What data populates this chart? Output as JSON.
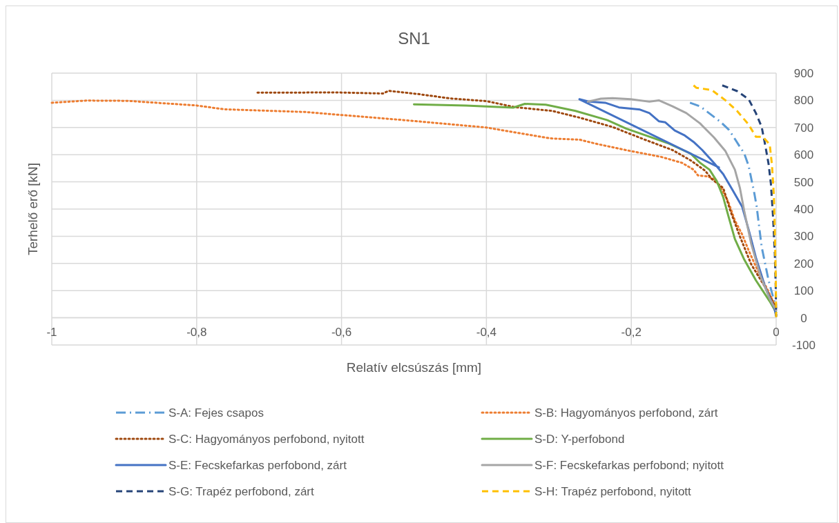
{
  "chart_data": {
    "type": "line",
    "title": "SN1",
    "xlabel": "Relatív elcsúszás [mm]",
    "ylabel": "Terhelő erő [kN]",
    "xlim": [
      -1,
      0
    ],
    "xticks": [
      -1,
      {
        "value": -0.8,
        "label": "-0,8"
      },
      {
        "value": -0.6,
        "label": "-0,6"
      },
      {
        "value": -0.4,
        "label": "-0,4"
      },
      {
        "value": -0.2,
        "label": "-0,2"
      },
      0
    ],
    "ylim": [
      -100,
      900
    ],
    "yticks": [
      -100,
      0,
      100,
      200,
      300,
      400,
      500,
      600,
      700,
      800,
      900
    ],
    "grid": true,
    "legend": "bottom",
    "marker": "none",
    "series": [
      {
        "name": "S-A: Fejes csapos",
        "color": "#5b9bd5",
        "line_style": "dashdot",
        "x": [
          -0.119,
          -0.105,
          -0.076,
          -0.065,
          -0.044,
          -0.038,
          -0.03,
          -0.027,
          -0.02,
          -0.0105,
          -0.0026,
          0
        ],
        "values": [
          791,
          778,
          719,
          691,
          604,
          559,
          456,
          411,
          261,
          138,
          61,
          6
        ]
      },
      {
        "name": "S-B: Hagyományos perfobond, zárt",
        "color": "#ed7d31",
        "line_style": "dotted",
        "x": [
          -1,
          -0.953,
          -0.895,
          -0.8,
          -0.762,
          -0.65,
          -0.6,
          -0.517,
          -0.4,
          -0.312,
          -0.271,
          -0.245,
          -0.2,
          -0.159,
          -0.13,
          -0.114,
          -0.108,
          -0.095,
          -0.086,
          -0.076,
          -0.066,
          -0.057,
          -0.047,
          -0.038,
          -0.025,
          -0.012,
          0
        ],
        "values": [
          791,
          799,
          798,
          781,
          767,
          757,
          746,
          728,
          700,
          660,
          655,
          638,
          613,
          592,
          570,
          545,
          524,
          520,
          511,
          477,
          426,
          358,
          307,
          248,
          171,
          104,
          36
        ]
      },
      {
        "name": "S-C: Hagyományos perfobond, nyitott",
        "color": "#9e480e",
        "line_style": "dotted",
        "x": [
          -0.716,
          -0.606,
          -0.543,
          -0.535,
          -0.494,
          -0.45,
          -0.4,
          -0.361,
          -0.309,
          -0.271,
          -0.226,
          -0.181,
          -0.143,
          -0.118,
          -0.098,
          -0.089,
          -0.073,
          -0.063,
          -0.05,
          -0.0345,
          -0.015,
          0
        ],
        "values": [
          828,
          829,
          825,
          835,
          823,
          807,
          797,
          775,
          761,
          736,
          702,
          655,
          617,
          579,
          541,
          511,
          477,
          392,
          299,
          197,
          112,
          36
        ]
      },
      {
        "name": "S-D: Y-perfobond",
        "color": "#70ad47",
        "line_style": "solid",
        "x": [
          -0.5,
          -0.428,
          -0.363,
          -0.347,
          -0.318,
          -0.277,
          -0.233,
          -0.207,
          -0.181,
          -0.15,
          -0.118,
          -0.105,
          -0.092,
          -0.082,
          -0.073,
          -0.066,
          -0.057,
          -0.044,
          -0.028,
          -0.009,
          0
        ],
        "values": [
          785,
          781,
          773,
          787,
          784,
          761,
          727,
          696,
          672,
          643,
          604,
          570,
          545,
          503,
          443,
          375,
          290,
          214,
          138,
          61,
          20
        ]
      },
      {
        "name": "S-E: Fecskefarkas perfobond, zárt",
        "color": "#4472c4",
        "line_style": "solid",
        "x": [
          0,
          -0.0026,
          -0.015,
          -0.028,
          -0.038,
          -0.047,
          -0.06,
          -0.073,
          -0.086,
          -0.102,
          -0.114,
          -0.127,
          -0.14,
          -0.153,
          -0.162,
          -0.175,
          -0.188,
          -0.217,
          -0.236,
          -0.258,
          -0.2716,
          -0.079
        ],
        "values": [
          6,
          36,
          112,
          222,
          324,
          409,
          469,
          528,
          570,
          617,
          647,
          672,
          689,
          719,
          723,
          753,
          766,
          774,
          791,
          795,
          804,
          553
        ]
      },
      {
        "name": "S-F: Fecskefarkas perfobond; nyitott",
        "color": "#a5a5a5",
        "line_style": "solid",
        "x": [
          -0.26,
          -0.242,
          -0.226,
          -0.201,
          -0.175,
          -0.162,
          -0.143,
          -0.124,
          -0.105,
          -0.086,
          -0.07,
          -0.057,
          -0.05,
          -0.044,
          -0.0345,
          -0.0217,
          -0.0089,
          0
        ],
        "values": [
          795,
          806,
          808,
          804,
          795,
          800,
          778,
          753,
          715,
          664,
          613,
          545,
          477,
          392,
          273,
          154,
          70,
          27
        ]
      },
      {
        "name": "S-G: Trapéz perfobond, zárt",
        "color": "#264478",
        "line_style": "dashed",
        "x": [
          -0.0744,
          -0.054,
          -0.038,
          -0.028,
          -0.02,
          -0.0153,
          -0.0105,
          -0.0073,
          -0.0042,
          -0.0019,
          -0.0006,
          0
        ],
        "values": [
          855,
          834,
          804,
          753,
          702,
          638,
          566,
          494,
          367,
          239,
          112,
          6
        ]
      },
      {
        "name": "S-H: Trapéz perfobond, nyitott",
        "color": "#ffc000",
        "line_style": "dashed",
        "x": [
          -0.114,
          -0.11,
          -0.089,
          -0.07,
          -0.054,
          -0.038,
          -0.028,
          -0.0185,
          -0.0089,
          -0.0058,
          -0.0032,
          -0.0019,
          -0.0006,
          0
        ],
        "values": [
          855,
          846,
          838,
          800,
          761,
          711,
          666,
          666,
          638,
          562,
          452,
          324,
          154,
          2
        ]
      }
    ]
  }
}
